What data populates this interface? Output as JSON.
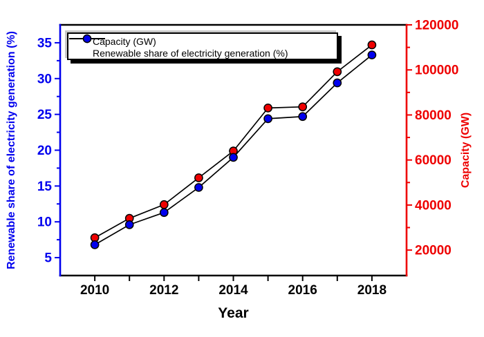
{
  "chart_data": {
    "type": "line",
    "title": "",
    "xlabel": "Year",
    "x": [
      2010,
      2011,
      2012,
      2013,
      2014,
      2015,
      2016,
      2017,
      2018
    ],
    "series": [
      {
        "name": "Capacity (GW)",
        "axis": "right",
        "color": "#ee0000",
        "line_color": "#000000",
        "marker": "circle",
        "values": [
          25500,
          34100,
          40200,
          52100,
          64000,
          83100,
          83600,
          99200,
          111100
        ]
      },
      {
        "name": "Renewable share of electricity generation (%)",
        "axis": "left",
        "color": "#0000ee",
        "line_color": "#000000",
        "marker": "circle",
        "values": [
          6.8,
          9.6,
          11.3,
          14.8,
          19.0,
          24.4,
          24.7,
          29.4,
          33.3
        ]
      }
    ],
    "x_axis": {
      "color": "#000000",
      "range": [
        2009,
        2019
      ],
      "ticks": [
        2010,
        2011,
        2012,
        2013,
        2014,
        2015,
        2016,
        2017,
        2018
      ],
      "labeled_ticks": [
        2010,
        2012,
        2014,
        2016,
        2018
      ]
    },
    "left_axis": {
      "label": "Renewable share of electricity generation (%)",
      "color": "#0000ee",
      "range": [
        2.5,
        37.5
      ],
      "major_ticks": [
        5,
        10,
        15,
        20,
        25,
        30,
        35
      ],
      "minor_ticks": [
        7.5,
        12.5,
        17.5,
        22.5,
        27.5,
        32.5
      ]
    },
    "right_axis": {
      "label": "Capacity (GW)",
      "color": "#ee0000",
      "range": [
        8700,
        120000
      ],
      "major_ticks": [
        20000,
        40000,
        60000,
        80000,
        100000,
        120000
      ],
      "minor_ticks": [
        30000,
        50000,
        70000,
        90000,
        110000
      ]
    },
    "legend": {
      "position": "top-left",
      "entries": [
        "Capacity (GW)",
        "Renewable share of electricity generation (%)"
      ]
    },
    "grid": false,
    "frame": {
      "top_color": "#000000",
      "bottom_color": "#000000",
      "left_color": "#0000ee",
      "right_color": "#ee0000"
    }
  }
}
